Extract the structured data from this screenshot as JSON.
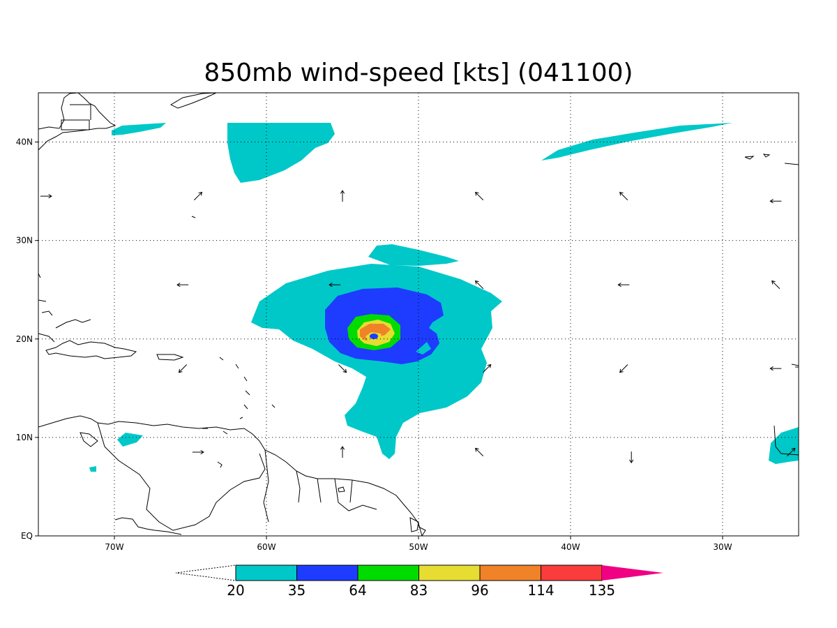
{
  "title": "850mb wind-speed [kts] (041100)",
  "map": {
    "lon_range": [
      -75,
      -25
    ],
    "lat_range": [
      0,
      45
    ],
    "lat_ticks": [
      {
        "value": 40,
        "label": "40N"
      },
      {
        "value": 30,
        "label": "30N"
      },
      {
        "value": 20,
        "label": "20N"
      },
      {
        "value": 10,
        "label": "10N"
      },
      {
        "value": 0,
        "label": "EQ"
      }
    ],
    "lon_ticks": [
      {
        "value": -70,
        "label": "70W"
      },
      {
        "value": -60,
        "label": "60W"
      },
      {
        "value": -50,
        "label": "50W"
      },
      {
        "value": -40,
        "label": "40W"
      },
      {
        "value": -30,
        "label": "30W"
      }
    ],
    "grid": "dotted"
  },
  "colorbar": {
    "levels": [
      "20",
      "35",
      "64",
      "83",
      "96",
      "114",
      "135"
    ],
    "colors": [
      "#00c8c8",
      "#1e3cff",
      "#00dc00",
      "#e6dc32",
      "#f08228",
      "#fa3c3c",
      "#f00082"
    ],
    "extend": "both"
  },
  "wind_vectors": [
    {
      "lon": -74.5,
      "lat": 34.5,
      "dir": "e"
    },
    {
      "lon": -64.5,
      "lat": 34.5,
      "dir": "ne"
    },
    {
      "lon": -55.0,
      "lat": 34.5,
      "dir": "n"
    },
    {
      "lon": -46.0,
      "lat": 34.5,
      "dir": "nw"
    },
    {
      "lon": -36.5,
      "lat": 34.5,
      "dir": "nw"
    },
    {
      "lon": -26.5,
      "lat": 34.0,
      "dir": "w"
    },
    {
      "lon": -65.5,
      "lat": 25.5,
      "dir": "w"
    },
    {
      "lon": -55.5,
      "lat": 25.5,
      "dir": "w"
    },
    {
      "lon": -46.0,
      "lat": 25.5,
      "dir": "nw"
    },
    {
      "lon": -36.5,
      "lat": 25.5,
      "dir": "w"
    },
    {
      "lon": -26.5,
      "lat": 25.5,
      "dir": "nw"
    },
    {
      "lon": -65.5,
      "lat": 17.0,
      "dir": "sw"
    },
    {
      "lon": -55.0,
      "lat": 17.0,
      "dir": "se"
    },
    {
      "lon": -45.5,
      "lat": 17.0,
      "dir": "ne"
    },
    {
      "lon": -36.5,
      "lat": 17.0,
      "dir": "sw"
    },
    {
      "lon": -26.5,
      "lat": 17.0,
      "dir": "w"
    },
    {
      "lon": -64.5,
      "lat": 8.5,
      "dir": "e"
    },
    {
      "lon": -55.0,
      "lat": 8.5,
      "dir": "n"
    },
    {
      "lon": -46.0,
      "lat": 8.5,
      "dir": "nw"
    },
    {
      "lon": -36.0,
      "lat": 8.0,
      "dir": "s"
    },
    {
      "lon": -25.5,
      "lat": 8.5,
      "dir": "ne"
    }
  ]
}
